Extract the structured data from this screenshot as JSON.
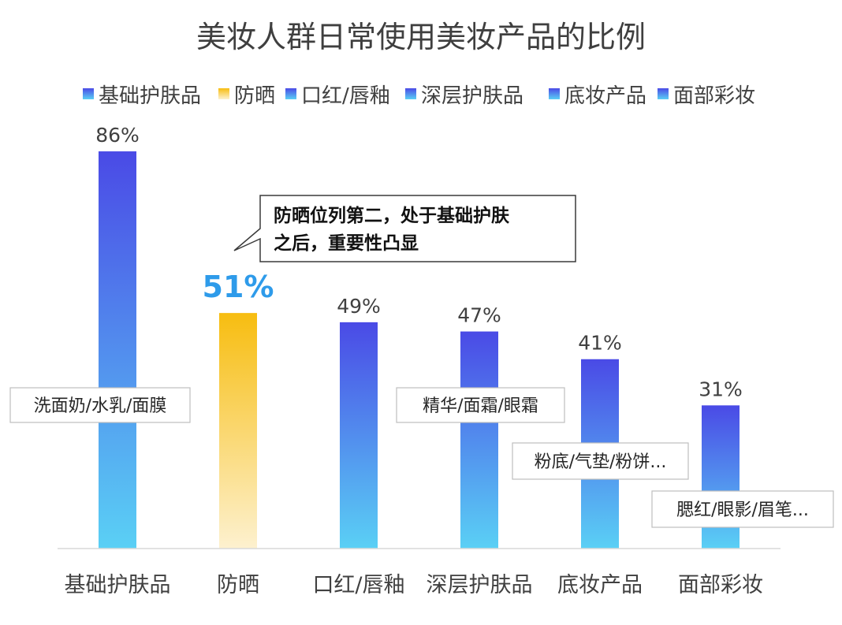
{
  "chart_data": {
    "type": "bar",
    "title": "美妆人群日常使用美妆产品的比例",
    "categories": [
      "基础护肤品",
      "防晒",
      "口红/唇釉",
      "深层护肤品",
      "底妆产品",
      "面部彩妆"
    ],
    "values": [
      86,
      51,
      49,
      47,
      41,
      31
    ],
    "value_labels": [
      "86%",
      "51%",
      "49%",
      "47%",
      "41%",
      "31%"
    ],
    "highlight_index": 1,
    "legend": [
      "基础护肤品",
      "防晒",
      "口红/唇釉",
      "深层护肤品",
      "底妆产品",
      "面部彩妆"
    ],
    "legend_placement": "top",
    "annotations": [
      "洗面奶/水乳/面膜",
      "",
      "",
      "精华/面霜/眼霜",
      "粉底/气垫/粉饼...",
      "腮红/眼影/眉笔..."
    ],
    "callout": [
      "防晒位列第二，处于基础护肤",
      "之后，重要性凸显"
    ],
    "ylim": [
      0,
      100
    ],
    "grid": false,
    "colors": {
      "blue_top": "#4a4ae6",
      "blue_bottom": "#5ad0f5",
      "yellow_top": "#f7bd10",
      "yellow_bottom": "#fdf1cf",
      "highlight_text": "#2e9bea"
    }
  }
}
